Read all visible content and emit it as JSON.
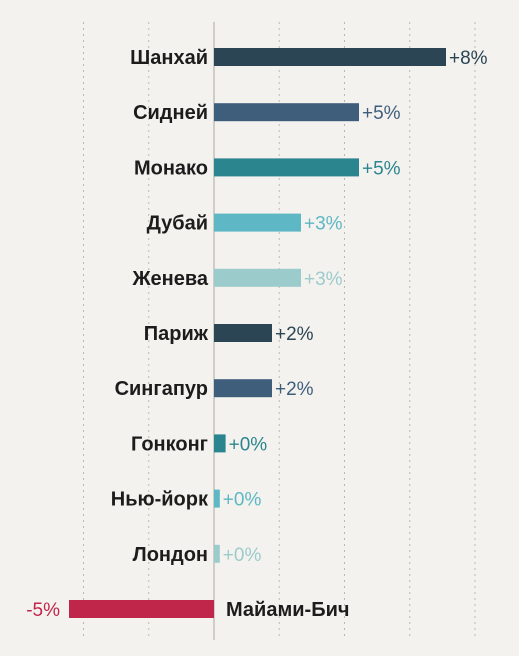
{
  "chart_data": {
    "type": "bar",
    "orientation": "horizontal",
    "title": "",
    "xlabel": "",
    "ylabel": "",
    "categories": [
      "Шанхай",
      "Сидней",
      "Монако",
      "Дубай",
      "Женева",
      "Париж",
      "Сингапур",
      "Гонконг",
      "Нью-йорк",
      "Лондон",
      "Майами-Бич"
    ],
    "values": [
      8,
      5,
      5,
      3,
      3,
      2,
      2,
      0.4,
      0.2,
      0.2,
      -5
    ],
    "value_labels": [
      "+8%",
      "+5%",
      "+5%",
      "+3%",
      "+3%",
      "+2%",
      "+2%",
      "+0%",
      "+0%",
      "+0%",
      "-5%"
    ],
    "colors": [
      "#2b4554",
      "#3f5e7c",
      "#2a858f",
      "#5db7c4",
      "#9ccbcc",
      "#2b4554",
      "#3f5e7c",
      "#2a858f",
      "#5db7c4",
      "#9ccbcc",
      "#c0254a"
    ],
    "label_colors": [
      "#2b4554",
      "#3f5e7c",
      "#2a858f",
      "#5db7c4",
      "#9ccbcc",
      "#2b4554",
      "#3f5e7c",
      "#2a858f",
      "#5db7c4",
      "#9ccbcc",
      "#c0254a"
    ],
    "xlim": [
      -6,
      10
    ],
    "grid": true,
    "legend": "none"
  }
}
